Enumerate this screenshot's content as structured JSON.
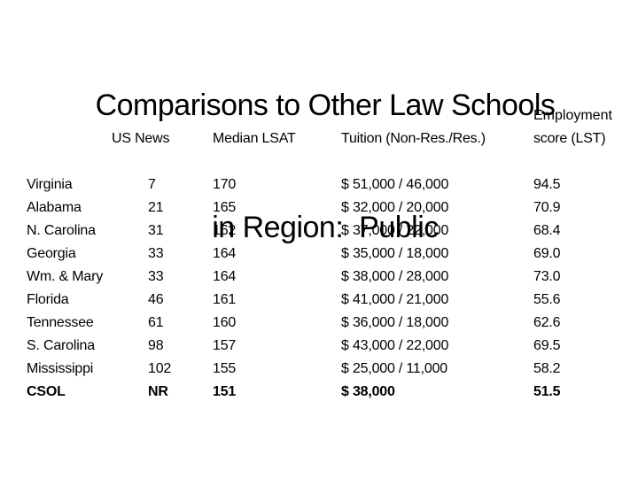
{
  "slide": {
    "title_line1": "Comparisons to Other Law Schools",
    "title_line2": "in Region:  Public"
  },
  "table": {
    "headers": {
      "us_news": "US News",
      "median_lsat": "Median LSAT",
      "tuition": "Tuition (Non-Res./Res.)",
      "employment_line1": "Employment",
      "employment_line2": "score (LST)"
    },
    "rows": [
      {
        "school": "Virginia",
        "us_news": "7",
        "median_lsat": "170",
        "tuition": "$ 51,000 / 46,000",
        "employment_score": "94.5"
      },
      {
        "school": "Alabama",
        "us_news": "21",
        "median_lsat": "165",
        "tuition": "$ 32,000 / 20,000",
        "employment_score": "70.9"
      },
      {
        "school": "N. Carolina",
        "us_news": "31",
        "median_lsat": "162",
        "tuition": "$ 37,000 / 22,000",
        "employment_score": "68.4"
      },
      {
        "school": "Georgia",
        "us_news": "33",
        "median_lsat": "164",
        "tuition": "$ 35,000 / 18,000",
        "employment_score": "69.0"
      },
      {
        "school": "Wm. & Mary",
        "us_news": "33",
        "median_lsat": "164",
        "tuition": "$ 38,000 / 28,000",
        "employment_score": "73.0"
      },
      {
        "school": "Florida",
        "us_news": "46",
        "median_lsat": "161",
        "tuition": "$ 41,000 / 21,000",
        "employment_score": "55.6"
      },
      {
        "school": "Tennessee",
        "us_news": "61",
        "median_lsat": "160",
        "tuition": "$ 36,000 / 18,000",
        "employment_score": "62.6"
      },
      {
        "school": "S. Carolina",
        "us_news": "98",
        "median_lsat": "157",
        "tuition": "$ 43,000 / 22,000",
        "employment_score": "69.5"
      },
      {
        "school": "Mississippi",
        "us_news": "102",
        "median_lsat": "155",
        "tuition": "$ 25,000 / 11,000",
        "employment_score": "58.2"
      },
      {
        "school": "CSOL",
        "us_news": "NR",
        "median_lsat": "151",
        "tuition": "$ 38,000",
        "employment_score": "51.5"
      }
    ]
  },
  "colors": {
    "background": "#ffffff",
    "text": "#000000"
  }
}
